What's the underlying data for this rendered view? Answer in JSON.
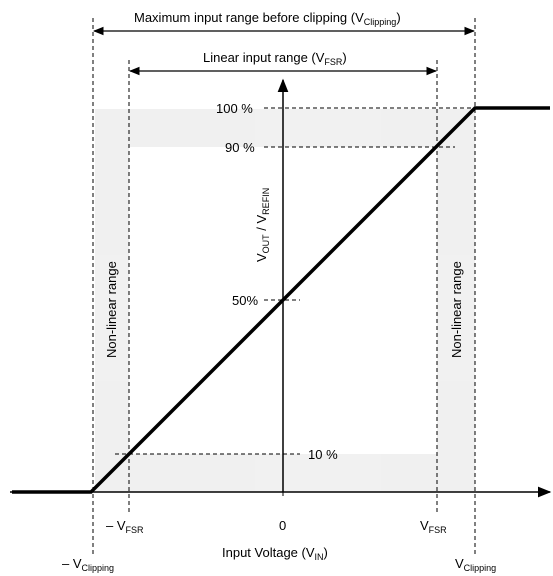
{
  "top_range": {
    "text": "Maximum input range before clipping (V",
    "sub": "Clipping",
    "close": ")"
  },
  "linear_range": {
    "text": "Linear input range (V",
    "sub": "FSR",
    "close": ")"
  },
  "nonlinear_label": "Non-linear range",
  "y_axis": {
    "v": "V",
    "out_sub": "OUT",
    "slash": " / V",
    "refin_sub": "REFIN"
  },
  "y_ticks": {
    "t100": "100 %",
    "t90": "90 %",
    "t50": "50%",
    "t10": "10 %"
  },
  "x_ticks": {
    "neg_fsr": {
      "pre": "– V",
      "sub": "FSR"
    },
    "zero": "0",
    "pos_fsr": {
      "pre": "V",
      "sub": "FSR"
    },
    "neg_clip": {
      "pre": "– V",
      "sub": "Clipping"
    },
    "pos_clip": {
      "pre": "V",
      "sub": "Clipping"
    }
  },
  "x_axis_title": {
    "text": "Input Voltage (V",
    "sub": "IN",
    "close": ")"
  }
}
